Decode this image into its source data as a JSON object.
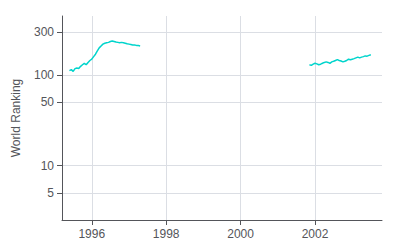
{
  "chart_data": {
    "type": "line",
    "ylabel": "World Ranking",
    "log": "y",
    "xlim": [
      1995.2,
      2003.8
    ],
    "xticks": [
      1996,
      1998,
      2000,
      2002
    ],
    "ylim": [
      2.5,
      450
    ],
    "yticks": [
      5,
      10,
      50,
      100,
      300
    ],
    "grid": true,
    "series": [
      {
        "color": "#00d4cc",
        "x": [
          1995.4,
          1995.45,
          1995.5,
          1995.55,
          1995.6,
          1995.65,
          1995.7,
          1995.75,
          1995.8,
          1995.85,
          1995.9,
          1995.95,
          1996.0,
          1996.05,
          1996.1,
          1996.15,
          1996.2,
          1996.25,
          1996.3,
          1996.35,
          1996.4,
          1996.45,
          1996.5,
          1996.55,
          1996.6,
          1996.65,
          1996.7,
          1996.75,
          1996.8,
          1996.85,
          1996.9,
          1996.95,
          1997.0,
          1997.05,
          1997.1,
          1997.15,
          1997.2,
          1997.25,
          1997.3
        ],
        "values": [
          112,
          115,
          110,
          118,
          120,
          118,
          125,
          130,
          135,
          130,
          138,
          145,
          150,
          160,
          170,
          185,
          200,
          210,
          220,
          225,
          228,
          230,
          235,
          238,
          235,
          232,
          230,
          228,
          230,
          228,
          225,
          222,
          220,
          218,
          215,
          215,
          213,
          212,
          210
        ]
      },
      {
        "color": "#00d4cc",
        "x": [
          2001.85,
          2001.9,
          2001.95,
          2002.0,
          2002.05,
          2002.1,
          2002.15,
          2002.2,
          2002.25,
          2002.3,
          2002.35,
          2002.4,
          2002.45,
          2002.5,
          2002.55,
          2002.6,
          2002.65,
          2002.7,
          2002.75,
          2002.8,
          2002.85,
          2002.9,
          2002.95,
          2003.0,
          2003.05,
          2003.1,
          2003.15,
          2003.2,
          2003.25,
          2003.3,
          2003.35,
          2003.4,
          2003.45,
          2003.5
        ],
        "values": [
          130,
          128,
          132,
          135,
          133,
          130,
          132,
          135,
          138,
          140,
          138,
          135,
          140,
          142,
          145,
          148,
          145,
          143,
          140,
          142,
          145,
          150,
          148,
          150,
          152,
          155,
          158,
          155,
          158,
          160,
          163,
          162,
          165,
          168
        ]
      }
    ]
  }
}
